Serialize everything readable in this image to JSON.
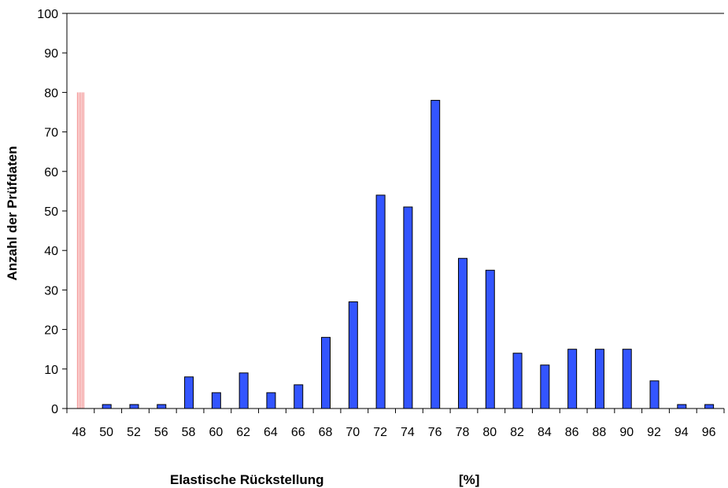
{
  "chart_data": {
    "type": "bar",
    "title": "",
    "xlabel": "Elastische Rückstellung",
    "xunit": "[%]",
    "ylabel": "Anzahl der Prüfdaten",
    "ylim": [
      0,
      100
    ],
    "yticks": [
      0,
      10,
      20,
      30,
      40,
      50,
      60,
      70,
      80,
      90,
      100
    ],
    "categories": [
      "48",
      "50",
      "52",
      "56",
      "58",
      "60",
      "62",
      "64",
      "66",
      "68",
      "70",
      "72",
      "74",
      "76",
      "78",
      "80",
      "82",
      "84",
      "86",
      "88",
      "90",
      "92",
      "94",
      "96"
    ],
    "values": [
      0,
      1,
      1,
      1,
      8,
      4,
      9,
      4,
      6,
      18,
      27,
      54,
      51,
      78,
      38,
      35,
      14,
      11,
      15,
      15,
      15,
      7,
      1,
      1
    ],
    "marker": {
      "category": "48",
      "value": 80,
      "color": "#f08080",
      "style": "hatched"
    },
    "bar_color": "#3355ff",
    "grid": false,
    "legend": "none"
  }
}
